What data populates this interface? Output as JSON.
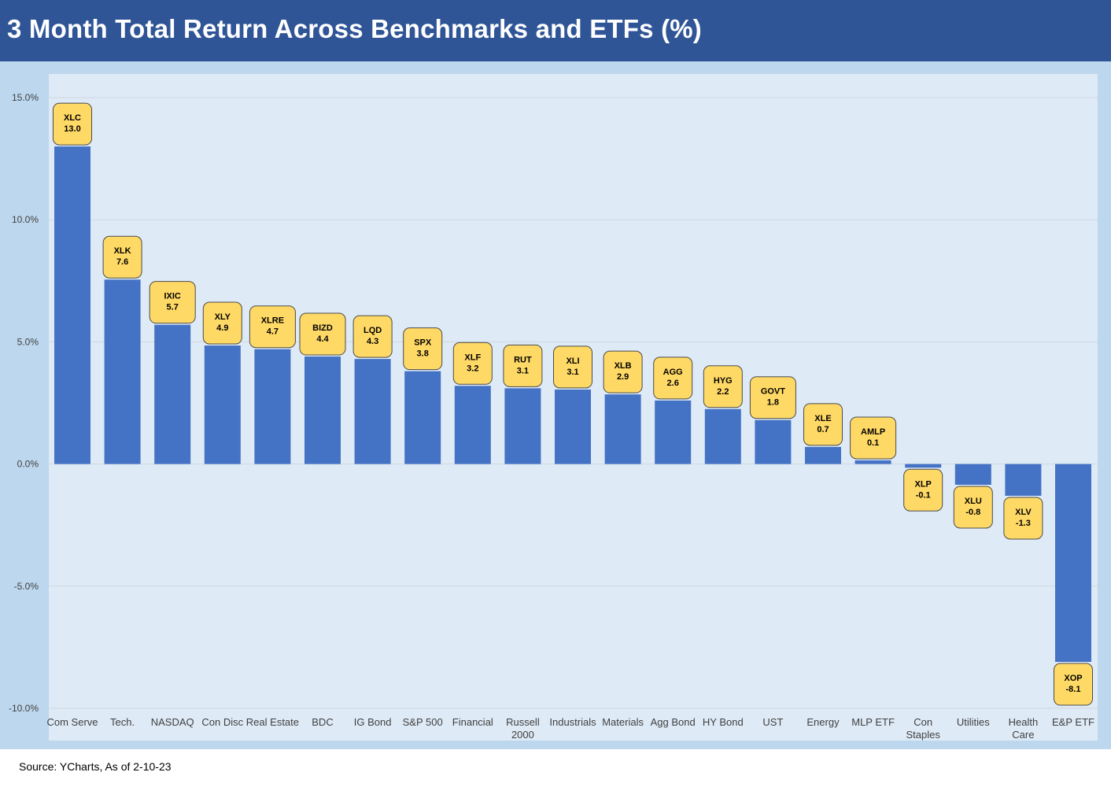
{
  "header": {
    "title": "3 Month Total Return Across Benchmarks and ETFs (%)"
  },
  "footer": {
    "source": "Source: YCharts, As of 2-10-23"
  },
  "colors": {
    "header_bg": "#2F5597",
    "frame_bg": "#BDD7EE",
    "plot_bg": "#DEEAF6",
    "bar": "#4472C4",
    "label_bg": "#FFD966",
    "label_border": "#4A4A4A",
    "gridline": "#D0D7E0"
  },
  "chart_data": {
    "type": "bar",
    "title": "3 Month Total Return Across Benchmarks and ETFs (%)",
    "xlabel": "",
    "ylabel": "",
    "ylim": [
      -10,
      15
    ],
    "yticks": [
      15,
      10,
      5,
      0,
      -5,
      -10
    ],
    "ytick_labels": [
      "15.0%",
      "10.0%",
      "5.0%",
      "0.0%",
      "-5.0%",
      "-10.0%"
    ],
    "grid": true,
    "categories": [
      [
        "Com Serve"
      ],
      [
        "Tech."
      ],
      [
        "NASDAQ"
      ],
      [
        "Con Disc"
      ],
      [
        "Real Estate"
      ],
      [
        "BDC"
      ],
      [
        "IG Bond"
      ],
      [
        "S&P 500"
      ],
      [
        "Financial"
      ],
      [
        "Russell",
        "2000"
      ],
      [
        "Industrials"
      ],
      [
        "Materials"
      ],
      [
        "Agg Bond"
      ],
      [
        "HY Bond"
      ],
      [
        "UST"
      ],
      [
        "Energy"
      ],
      [
        "MLP ETF"
      ],
      [
        "Con",
        "Staples"
      ],
      [
        "Utilities"
      ],
      [
        "Health",
        "Care"
      ],
      [
        "E&P ETF"
      ]
    ],
    "tickers": [
      "XLC",
      "XLK",
      "IXIC",
      "XLY",
      "XLRE",
      "BIZD",
      "LQD",
      "SPX",
      "XLF",
      "RUT",
      "XLI",
      "XLB",
      "AGG",
      "HYG",
      "GOVT",
      "XLE",
      "AMLP",
      "XLP",
      "XLU",
      "XLV",
      "XOP"
    ],
    "value_labels": [
      "13.0",
      "7.6",
      "5.7",
      "4.9",
      "4.7",
      "4.4",
      "4.3",
      "3.8",
      "3.2",
      "3.1",
      "3.1",
      "2.9",
      "2.6",
      "2.2",
      "1.8",
      "0.7",
      "0.1",
      "-0.1",
      "-0.8",
      "-1.3",
      "-8.1"
    ],
    "values": [
      13.0,
      7.55,
      5.7,
      4.85,
      4.7,
      4.4,
      4.3,
      3.8,
      3.2,
      3.1,
      3.05,
      2.85,
      2.6,
      2.25,
      1.8,
      0.7,
      0.15,
      -0.15,
      -0.85,
      -1.3,
      -8.1
    ]
  }
}
